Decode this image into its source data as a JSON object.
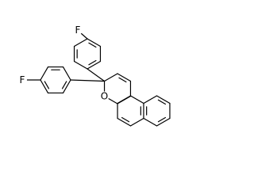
{
  "molecule": {
    "atoms": [
      {
        "label": "F"
      },
      {
        "label": "F"
      },
      {
        "label": "O"
      }
    ]
  }
}
